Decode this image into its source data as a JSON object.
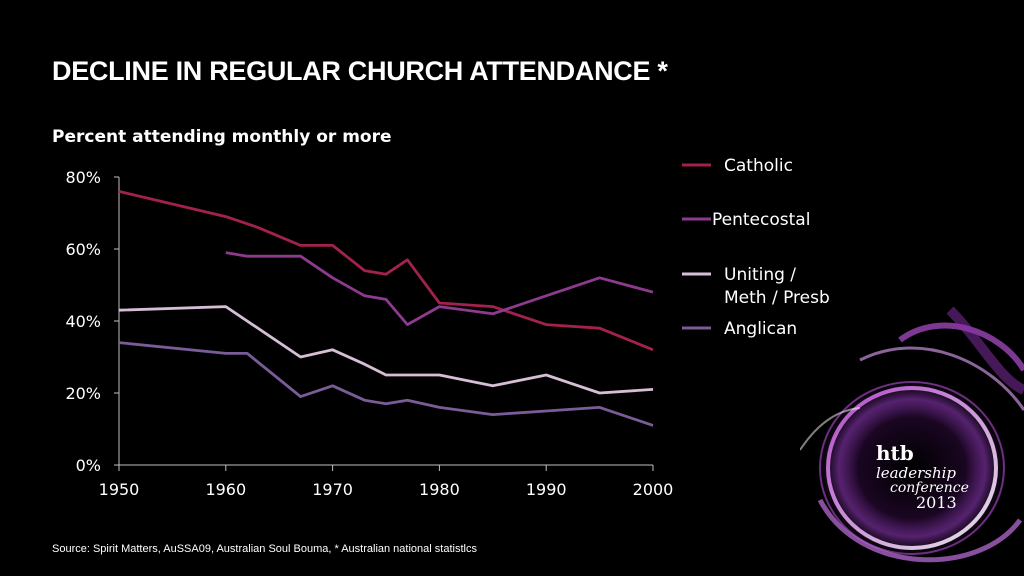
{
  "title": "DECLINE IN REGULAR CHURCH ATTENDANCE *",
  "subtitle": "Percent attending monthly or more",
  "source": "Source: Spirit Matters, AuSSA09, Australian Soul Bouma, * Australian national statistlcs",
  "logo": {
    "line1": "htb",
    "line2": "leadership",
    "line3": "conference",
    "line4": "2013"
  },
  "chart_data": {
    "type": "line",
    "title": "Percent attending monthly or more",
    "xlabel": "",
    "ylabel": "",
    "xlim": [
      1950,
      2000
    ],
    "ylim": [
      0,
      80
    ],
    "xticks": [
      "1950",
      "1960",
      "1970",
      "1980",
      "1990",
      "2000"
    ],
    "yticks": [
      "0%",
      "20%",
      "40%",
      "60%",
      "80%"
    ],
    "legend_position": "right",
    "series": [
      {
        "name": "Catholic",
        "color": "#a3214f",
        "x": [
          1950,
          1960,
          1963,
          1967,
          1970,
          1973,
          1975,
          1977,
          1980,
          1985,
          1990,
          1995,
          2000
        ],
        "y": [
          76,
          69,
          66,
          61,
          61,
          54,
          53,
          57,
          45,
          44,
          39,
          38,
          32
        ]
      },
      {
        "name": "Pentecostal",
        "color": "#8e3a8e",
        "x": [
          1960,
          1962,
          1967,
          1970,
          1973,
          1975,
          1977,
          1980,
          1985,
          1990,
          1995,
          2000
        ],
        "y": [
          59,
          58,
          58,
          52,
          47,
          46,
          39,
          44,
          42,
          47,
          52,
          48
        ]
      },
      {
        "name": "Uniting / Meth / Presb",
        "name_lines": [
          "Uniting /",
          "Meth / Presb"
        ],
        "color": "#d6bfd6",
        "x": [
          1950,
          1960,
          1967,
          1970,
          1973,
          1975,
          1980,
          1985,
          1990,
          1995,
          2000
        ],
        "y": [
          43,
          44,
          30,
          32,
          28,
          25,
          25,
          22,
          25,
          20,
          21
        ]
      },
      {
        "name": "Anglican",
        "color": "#7a5c99",
        "x": [
          1950,
          1960,
          1962,
          1967,
          1970,
          1973,
          1975,
          1977,
          1980,
          1985,
          1990,
          1995,
          2000
        ],
        "y": [
          34,
          31,
          31,
          19,
          22,
          18,
          17,
          18,
          16,
          14,
          15,
          16,
          11
        ]
      }
    ]
  }
}
